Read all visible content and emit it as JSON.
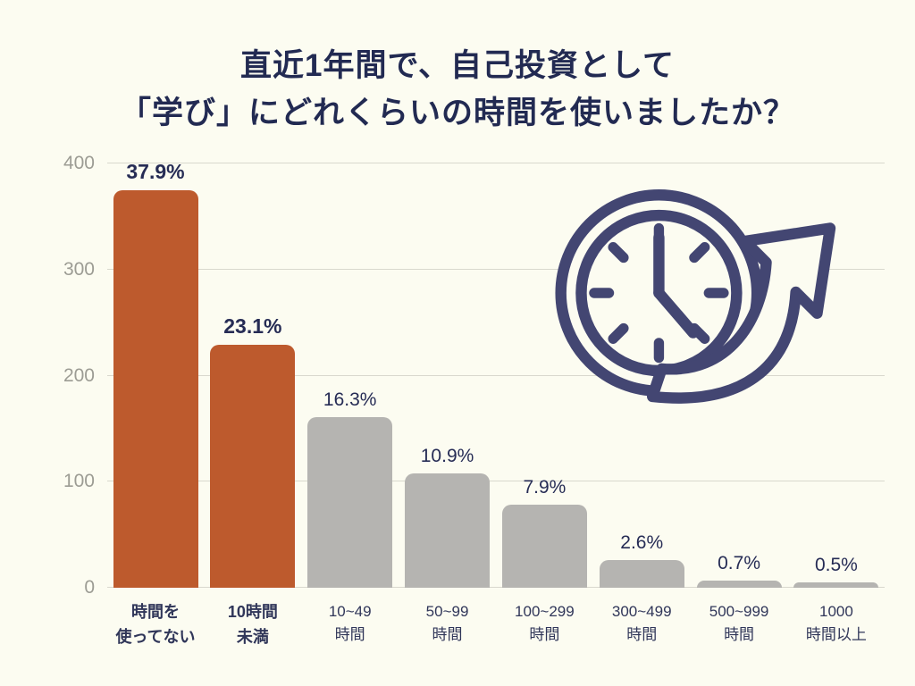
{
  "page": {
    "background": "#fcfcf1"
  },
  "title": {
    "line1": "直近1年間で、自己投資として",
    "line2": "「学び」にどれくらいの時間を使いましたか？",
    "color": "#222a52"
  },
  "chart_data": {
    "type": "bar",
    "title": "直近1年間で、自己投資として「学び」にどれくらいの時間を使いましたか？",
    "categories": [
      "時間を使ってない",
      "10時間未満",
      "10~49時間",
      "50~99時間",
      "100~299時間",
      "300~499時間",
      "500~999時間",
      "1000時間以上"
    ],
    "category_lines": [
      [
        "時間を",
        "使ってない"
      ],
      [
        "10時間",
        "未満"
      ],
      [
        "10~49",
        "時間"
      ],
      [
        "50~99",
        "時間"
      ],
      [
        "100~299",
        "時間"
      ],
      [
        "300~499",
        "時間"
      ],
      [
        "500~999",
        "時間"
      ],
      [
        "1000",
        "時間以上"
      ]
    ],
    "values": [
      375,
      229,
      161,
      108,
      78,
      26,
      7,
      5
    ],
    "percent_labels": [
      "37.9%",
      "23.1%",
      "16.3%",
      "10.9%",
      "7.9%",
      "2.6%",
      "0.7%",
      "0.5%"
    ],
    "percentages": [
      37.9,
      23.1,
      16.3,
      10.9,
      7.9,
      2.6,
      0.7,
      0.5
    ],
    "highlighted_indices": [
      0,
      1
    ],
    "ylim": [
      0,
      400
    ],
    "yticks": [
      0,
      100,
      200,
      300,
      400
    ],
    "grid": true,
    "legend": "none",
    "colors": {
      "highlight_bar": "#bd5a2d",
      "bar": "#b5b4b1",
      "gridline": "#d9d8ce",
      "value_label": "#262c55",
      "category_label": "#303659",
      "axis_tick_label": "#9c9c94"
    }
  },
  "icon": {
    "name": "clock-with-up-arrow",
    "color": "#434672"
  }
}
